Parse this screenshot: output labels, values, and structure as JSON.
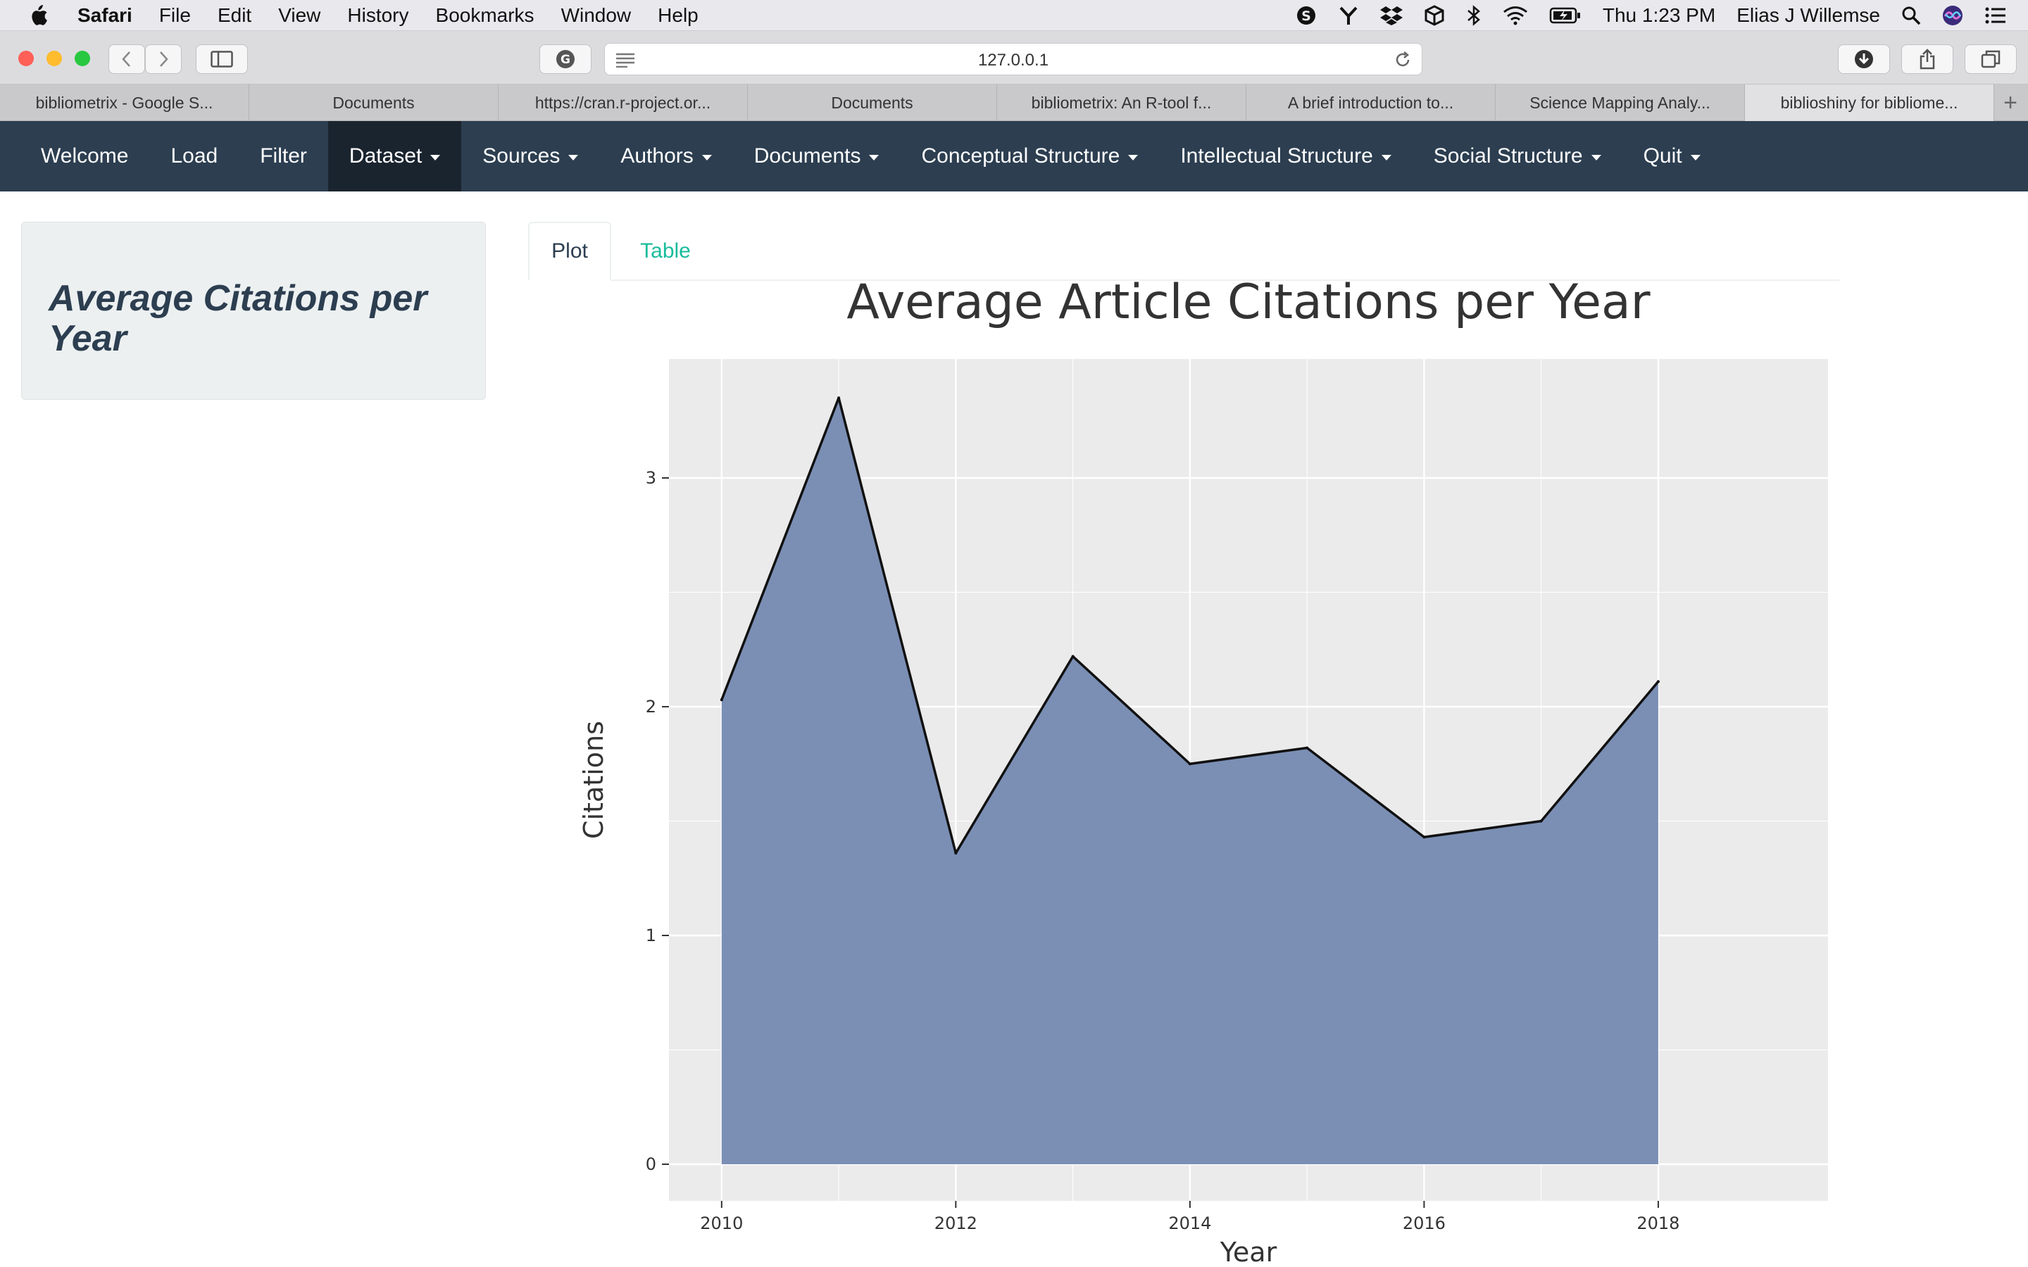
{
  "menubar": {
    "app": "Safari",
    "items": [
      "File",
      "Edit",
      "View",
      "History",
      "Bookmarks",
      "Window",
      "Help"
    ],
    "clock": "Thu 1:23 PM",
    "user": "Elias J Willemse"
  },
  "toolbar": {
    "url": "127.0.0.1"
  },
  "tabs": [
    {
      "label": "bibliometrix - Google S..."
    },
    {
      "label": "Documents"
    },
    {
      "label": "https://cran.r-project.or..."
    },
    {
      "label": "Documents"
    },
    {
      "label": "bibliometrix: An R-tool f..."
    },
    {
      "label": "A brief introduction to..."
    },
    {
      "label": "Science Mapping Analy..."
    },
    {
      "label": "biblioshiny for bibliome..."
    }
  ],
  "tab_add": "+",
  "navbar": {
    "items": [
      {
        "label": "Welcome"
      },
      {
        "label": "Load"
      },
      {
        "label": "Filter"
      },
      {
        "label": "Dataset"
      },
      {
        "label": "Sources"
      },
      {
        "label": "Authors"
      },
      {
        "label": "Documents"
      },
      {
        "label": "Conceptual Structure"
      },
      {
        "label": "Intellectual Structure"
      },
      {
        "label": "Social Structure"
      },
      {
        "label": "Quit"
      }
    ]
  },
  "sidebar": {
    "title": "Average Citations per Year"
  },
  "tabset": {
    "plot": "Plot",
    "table": "Table"
  },
  "colors": {
    "navbar": "#2c3e50",
    "navbar_active": "#1a242f",
    "area_fill": "#7b8fb5",
    "panel_bg": "#ebebeb",
    "link": "#18bc9c"
  },
  "chart_data": {
    "type": "area",
    "title": "Average Article Citations per Year",
    "xlabel": "Year",
    "ylabel": "Citations",
    "x": [
      2010,
      2011,
      2012,
      2013,
      2014,
      2015,
      2016,
      2017,
      2018
    ],
    "values": [
      2.03,
      3.35,
      1.36,
      2.22,
      1.75,
      1.82,
      1.43,
      1.5,
      2.11
    ],
    "xlim": [
      2009.55,
      2019.45
    ],
    "ylim": [
      -0.16,
      3.52
    ],
    "xticks": [
      2010,
      2012,
      2014,
      2016,
      2018
    ],
    "yticks": [
      0,
      1,
      2,
      3
    ],
    "grid": true
  }
}
